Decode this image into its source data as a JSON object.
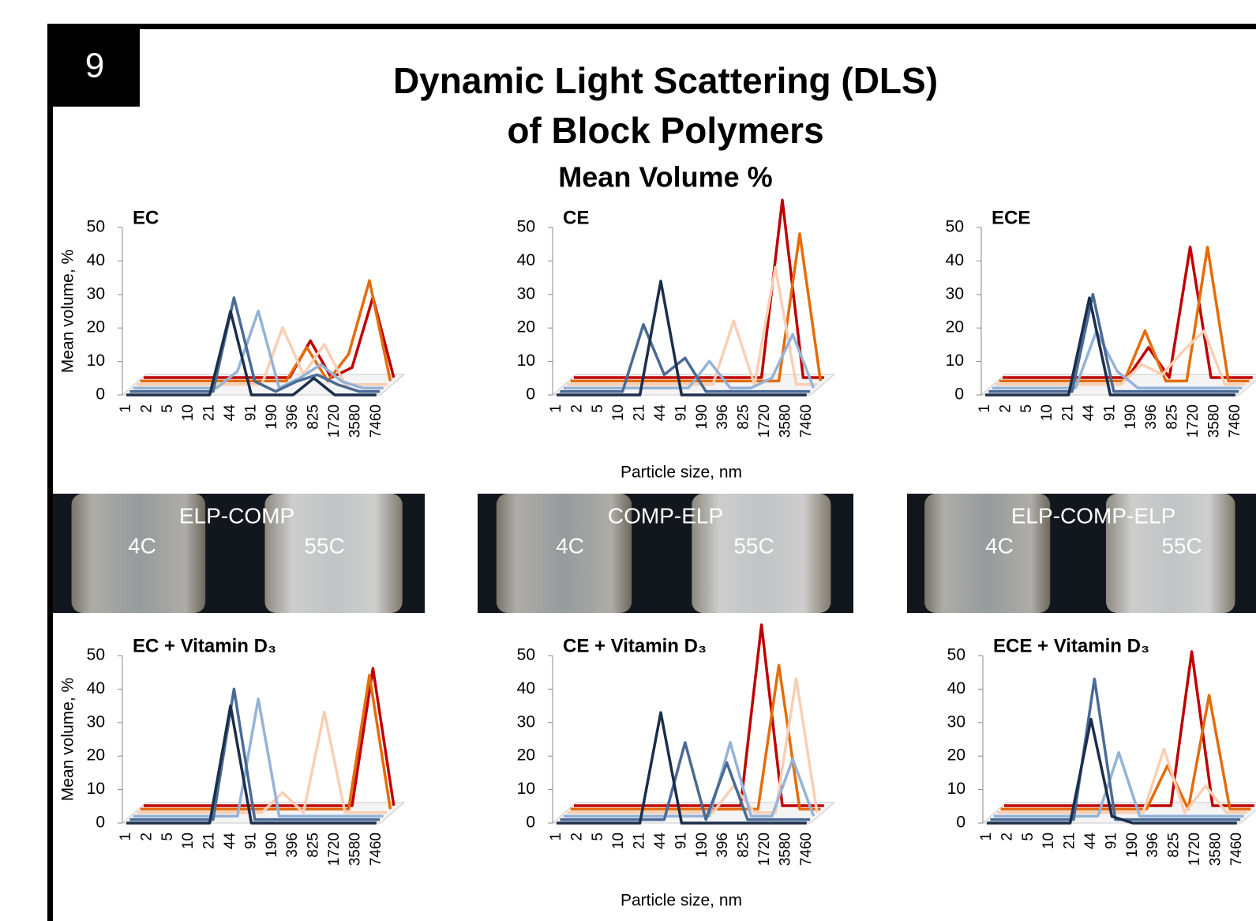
{
  "slide": {
    "number": "9",
    "title_lines": [
      "Dynamic Light Scattering (DLS)",
      "of Block Polymers"
    ],
    "subtitle": "Mean Volume %"
  },
  "chart_data": [
    {
      "type": "line",
      "title": "EC",
      "ylabel": "Mean volume, %",
      "categories": [
        "1",
        "2",
        "5",
        "10",
        "21",
        "44",
        "91",
        "190",
        "396",
        "825",
        "1720",
        "3580",
        "7460"
      ],
      "ylim": [
        0,
        50
      ],
      "yticks": [
        0,
        10,
        20,
        30,
        40,
        50
      ],
      "series": [
        {
          "color": "#c00000",
          "values": [
            0,
            0,
            0,
            0,
            0,
            0,
            0,
            0,
            11,
            0,
            3,
            24,
            0
          ]
        },
        {
          "color": "#e46c0a",
          "values": [
            0,
            0,
            0,
            0,
            0,
            0,
            0,
            0,
            10,
            0,
            8,
            30,
            0
          ]
        },
        {
          "color": "#f9cfb4",
          "values": [
            0,
            0,
            0,
            0,
            0,
            0,
            0,
            17,
            3,
            12,
            0,
            0,
            0
          ]
        },
        {
          "color": "#95b3d7",
          "values": [
            0,
            0,
            0,
            0,
            0,
            5,
            23,
            0,
            3,
            7,
            2,
            0,
            0
          ]
        },
        {
          "color": "#4a6a96",
          "values": [
            0,
            0,
            0,
            0,
            0,
            28,
            3,
            0,
            3,
            5,
            2,
            0,
            0
          ]
        },
        {
          "color": "#1b2e4b",
          "values": [
            0,
            0,
            0,
            0,
            0,
            25,
            0,
            0,
            0,
            5,
            0,
            0,
            0
          ]
        }
      ]
    },
    {
      "type": "line",
      "title": "CE",
      "xlabel": "Particle size, nm",
      "categories": [
        "1",
        "2",
        "5",
        "10",
        "21",
        "44",
        "91",
        "190",
        "396",
        "825",
        "1720",
        "3580",
        "7460"
      ],
      "ylim": [
        0,
        50
      ],
      "yticks": [
        0,
        10,
        20,
        30,
        40,
        50
      ],
      "series": [
        {
          "color": "#c00000",
          "values": [
            0,
            0,
            0,
            0,
            0,
            0,
            0,
            0,
            0,
            0,
            53,
            0,
            0
          ]
        },
        {
          "color": "#e46c0a",
          "values": [
            0,
            0,
            0,
            0,
            0,
            0,
            0,
            0,
            0,
            0,
            0,
            44,
            0
          ]
        },
        {
          "color": "#f9cfb4",
          "values": [
            0,
            0,
            0,
            0,
            0,
            0,
            0,
            0,
            19,
            0,
            35,
            0,
            0
          ]
        },
        {
          "color": "#95b3d7",
          "values": [
            0,
            0,
            0,
            0,
            0,
            0,
            0,
            8,
            0,
            0,
            3,
            16,
            0
          ]
        },
        {
          "color": "#4a6a96",
          "values": [
            0,
            0,
            0,
            0,
            20,
            5,
            10,
            0,
            0,
            0,
            0,
            0,
            0
          ]
        },
        {
          "color": "#1b2e4b",
          "values": [
            0,
            0,
            0,
            0,
            0,
            34,
            0,
            0,
            0,
            0,
            0,
            0,
            0
          ]
        }
      ]
    },
    {
      "type": "line",
      "title": "ECE",
      "categories": [
        "1",
        "2",
        "5",
        "10",
        "21",
        "44",
        "91",
        "190",
        "396",
        "825",
        "1720",
        "3580",
        "7460"
      ],
      "ylim": [
        0,
        50
      ],
      "yticks": [
        0,
        10,
        20,
        30,
        40,
        50
      ],
      "series": [
        {
          "color": "#c00000",
          "values": [
            0,
            0,
            0,
            0,
            0,
            0,
            0,
            9,
            0,
            39,
            0,
            0,
            0
          ]
        },
        {
          "color": "#e46c0a",
          "values": [
            0,
            0,
            0,
            0,
            0,
            0,
            0,
            15,
            0,
            0,
            40,
            0,
            0
          ]
        },
        {
          "color": "#f9cfb4",
          "values": [
            0,
            0,
            0,
            0,
            0,
            0,
            0,
            6,
            3,
            10,
            16,
            0,
            0
          ]
        },
        {
          "color": "#95b3d7",
          "values": [
            0,
            0,
            0,
            0,
            0,
            17,
            5,
            0,
            0,
            0,
            0,
            0,
            0
          ]
        },
        {
          "color": "#4a6a96",
          "values": [
            0,
            0,
            0,
            0,
            0,
            29,
            0,
            0,
            0,
            0,
            0,
            0,
            0
          ]
        },
        {
          "color": "#1b2e4b",
          "values": [
            0,
            0,
            0,
            0,
            0,
            29,
            0,
            0,
            0,
            0,
            0,
            0,
            0
          ]
        }
      ]
    },
    {
      "type": "line",
      "title": "EC + Vitamin D₃",
      "ylabel": "Mean volume, %",
      "categories": [
        "1",
        "2",
        "5",
        "10",
        "21",
        "44",
        "91",
        "190",
        "396",
        "825",
        "1720",
        "3580",
        "7460"
      ],
      "ylim": [
        0,
        50
      ],
      "yticks": [
        0,
        10,
        20,
        30,
        40,
        50
      ],
      "series": [
        {
          "color": "#c00000",
          "values": [
            0,
            0,
            0,
            0,
            0,
            0,
            0,
            0,
            0,
            0,
            0,
            41,
            0
          ]
        },
        {
          "color": "#e46c0a",
          "values": [
            0,
            0,
            0,
            0,
            0,
            0,
            0,
            0,
            0,
            0,
            0,
            40,
            0
          ]
        },
        {
          "color": "#f9cfb4",
          "values": [
            0,
            0,
            0,
            0,
            0,
            0,
            0,
            6,
            0,
            30,
            0,
            0,
            0
          ]
        },
        {
          "color": "#95b3d7",
          "values": [
            0,
            0,
            0,
            0,
            0,
            0,
            35,
            0,
            0,
            0,
            0,
            0,
            0
          ]
        },
        {
          "color": "#4a6a96",
          "values": [
            0,
            0,
            0,
            0,
            0,
            39,
            0,
            0,
            0,
            0,
            0,
            0,
            0
          ]
        },
        {
          "color": "#1b2e4b",
          "values": [
            0,
            0,
            0,
            0,
            0,
            35,
            0,
            0,
            0,
            0,
            0,
            0,
            0
          ]
        }
      ]
    },
    {
      "type": "line",
      "title": "CE + Vitamin D₃",
      "xlabel": "Particle size, nm",
      "categories": [
        "1",
        "2",
        "5",
        "10",
        "21",
        "44",
        "91",
        "190",
        "396",
        "825",
        "1720",
        "3580",
        "7460"
      ],
      "ylim": [
        0,
        50
      ],
      "yticks": [
        0,
        10,
        20,
        30,
        40,
        50
      ],
      "series": [
        {
          "color": "#c00000",
          "values": [
            0,
            0,
            0,
            0,
            0,
            0,
            0,
            0,
            0,
            54,
            0,
            0,
            0
          ]
        },
        {
          "color": "#e46c0a",
          "values": [
            0,
            0,
            0,
            0,
            0,
            0,
            0,
            0,
            0,
            0,
            43,
            0,
            0
          ]
        },
        {
          "color": "#f9cfb4",
          "values": [
            0,
            0,
            0,
            0,
            0,
            0,
            0,
            0,
            8,
            0,
            0,
            40,
            0
          ]
        },
        {
          "color": "#95b3d7",
          "values": [
            0,
            0,
            0,
            0,
            0,
            0,
            0,
            0,
            22,
            0,
            0,
            17,
            0
          ]
        },
        {
          "color": "#4a6a96",
          "values": [
            0,
            0,
            0,
            0,
            0,
            0,
            23,
            0,
            17,
            0,
            0,
            0,
            0
          ]
        },
        {
          "color": "#1b2e4b",
          "values": [
            0,
            0,
            0,
            0,
            0,
            33,
            0,
            0,
            0,
            0,
            0,
            0,
            0
          ]
        }
      ]
    },
    {
      "type": "line",
      "title": "ECE + Vitamin D₃",
      "categories": [
        "1",
        "2",
        "5",
        "10",
        "21",
        "44",
        "91",
        "190",
        "396",
        "825",
        "1720",
        "3580",
        "7460"
      ],
      "ylim": [
        0,
        50
      ],
      "yticks": [
        0,
        10,
        20,
        30,
        40,
        50
      ],
      "series": [
        {
          "color": "#c00000",
          "values": [
            0,
            0,
            0,
            0,
            0,
            0,
            0,
            0,
            0,
            46,
            0,
            0,
            0
          ]
        },
        {
          "color": "#e46c0a",
          "values": [
            0,
            0,
            0,
            0,
            0,
            0,
            0,
            0,
            13,
            0,
            34,
            0,
            0
          ]
        },
        {
          "color": "#f9cfb4",
          "values": [
            0,
            0,
            0,
            0,
            0,
            0,
            0,
            0,
            19,
            0,
            8,
            0,
            0
          ]
        },
        {
          "color": "#95b3d7",
          "values": [
            0,
            0,
            0,
            0,
            0,
            0,
            19,
            0,
            0,
            0,
            0,
            0,
            0
          ]
        },
        {
          "color": "#4a6a96",
          "values": [
            0,
            0,
            0,
            0,
            0,
            42,
            0,
            0,
            0,
            0,
            0,
            0,
            0
          ]
        },
        {
          "color": "#1b2e4b",
          "values": [
            0,
            0,
            0,
            0,
            0,
            31,
            2,
            0,
            0,
            0,
            0,
            0,
            0
          ]
        }
      ]
    }
  ],
  "photos": [
    {
      "title": "ELP-COMP",
      "left": "4C",
      "right": "55C"
    },
    {
      "title": "COMP-ELP",
      "left": "4C",
      "right": "55C"
    },
    {
      "title": "ELP-COMP-ELP",
      "left": "4C",
      "right": "55C"
    }
  ]
}
